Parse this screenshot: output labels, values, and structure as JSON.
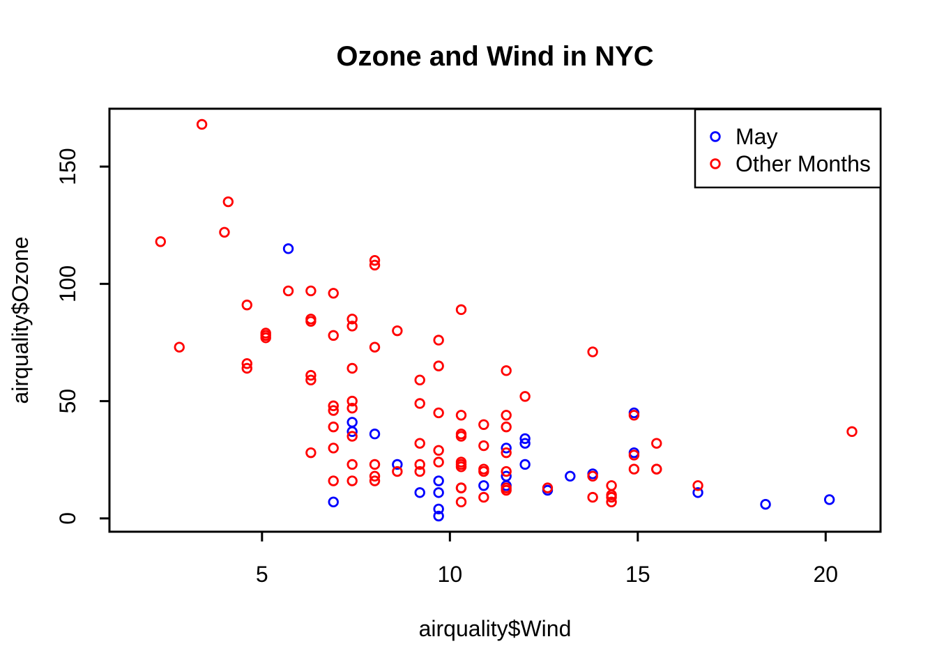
{
  "chart_data": {
    "type": "scatter",
    "title": "Ozone and Wind in NYC",
    "xlabel": "airquality$Wind",
    "ylabel": "airquality$Ozone",
    "xlim": [
      0.94,
      21.46
    ],
    "ylim": [
      -5.68,
      174.68
    ],
    "x_ticks": [
      5,
      10,
      15,
      20
    ],
    "y_ticks": [
      0,
      50,
      100,
      150
    ],
    "grid": false,
    "marker": "open-circle",
    "axis_color": "#000000",
    "background": "#ffffff",
    "legend": {
      "position": "top-right",
      "border": true
    },
    "series": [
      {
        "name": "May",
        "color": "#0000FF",
        "points": [
          [
            7.4,
            41
          ],
          [
            8,
            36
          ],
          [
            12.6,
            12
          ],
          [
            11.5,
            18
          ],
          [
            14.9,
            28
          ],
          [
            8.6,
            23
          ],
          [
            13.8,
            19
          ],
          [
            20.1,
            8
          ],
          [
            6.9,
            7
          ],
          [
            9.7,
            16
          ],
          [
            9.2,
            11
          ],
          [
            10.9,
            14
          ],
          [
            13.2,
            18
          ],
          [
            11.5,
            14
          ],
          [
            12,
            34
          ],
          [
            18.4,
            6
          ],
          [
            11.5,
            30
          ],
          [
            9.7,
            11
          ],
          [
            9.7,
            1
          ],
          [
            16.6,
            11
          ],
          [
            9.7,
            4
          ],
          [
            12,
            32
          ],
          [
            12,
            23
          ],
          [
            14.9,
            45
          ],
          [
            5.7,
            115
          ],
          [
            7.4,
            37
          ]
        ]
      },
      {
        "name": "Other Months",
        "color": "#FF0000",
        "points": [
          [
            9.7,
            29
          ],
          [
            13.8,
            71
          ],
          [
            11.5,
            39
          ],
          [
            8,
            23
          ],
          [
            14.9,
            21
          ],
          [
            20.7,
            37
          ],
          [
            9.2,
            20
          ],
          [
            11.5,
            12
          ],
          [
            10.3,
            13
          ],
          [
            4.1,
            135
          ],
          [
            9.2,
            49
          ],
          [
            9.2,
            32
          ],
          [
            4.6,
            64
          ],
          [
            10.9,
            40
          ],
          [
            5.1,
            77
          ],
          [
            6.3,
            97
          ],
          [
            5.7,
            97
          ],
          [
            7.4,
            85
          ],
          [
            14.3,
            10
          ],
          [
            14.9,
            27
          ],
          [
            14.3,
            7
          ],
          [
            6.9,
            48
          ],
          [
            10.3,
            35
          ],
          [
            6.3,
            61
          ],
          [
            5.1,
            79
          ],
          [
            11.5,
            63
          ],
          [
            6.9,
            16
          ],
          [
            8.6,
            80
          ],
          [
            8,
            108
          ],
          [
            8.6,
            20
          ],
          [
            12,
            52
          ],
          [
            7.4,
            82
          ],
          [
            7.4,
            50
          ],
          [
            7.4,
            64
          ],
          [
            9.2,
            59
          ],
          [
            6.9,
            39
          ],
          [
            13.8,
            9
          ],
          [
            7.4,
            16
          ],
          [
            6.9,
            78
          ],
          [
            7.4,
            35
          ],
          [
            4.6,
            66
          ],
          [
            4,
            122
          ],
          [
            10.3,
            89
          ],
          [
            8,
            110
          ],
          [
            11.5,
            44
          ],
          [
            11.5,
            28
          ],
          [
            9.7,
            65
          ],
          [
            10.3,
            22
          ],
          [
            6.3,
            59
          ],
          [
            7.4,
            23
          ],
          [
            10.9,
            31
          ],
          [
            10.3,
            44
          ],
          [
            15.5,
            21
          ],
          [
            14.3,
            9
          ],
          [
            9.7,
            45
          ],
          [
            3.4,
            168
          ],
          [
            8,
            73
          ],
          [
            9.7,
            76
          ],
          [
            2.3,
            118
          ],
          [
            6.3,
            84
          ],
          [
            6.3,
            85
          ],
          [
            6.9,
            96
          ],
          [
            5.1,
            78
          ],
          [
            2.8,
            73
          ],
          [
            4.6,
            91
          ],
          [
            7.4,
            47
          ],
          [
            15.5,
            32
          ],
          [
            10.9,
            20
          ],
          [
            10.3,
            23
          ],
          [
            10.9,
            21
          ],
          [
            9.7,
            24
          ],
          [
            14.9,
            44
          ],
          [
            15.5,
            21
          ],
          [
            6.3,
            28
          ],
          [
            10.9,
            9
          ],
          [
            11.5,
            13
          ],
          [
            6.9,
            46
          ],
          [
            13.8,
            18
          ],
          [
            10.3,
            13
          ],
          [
            10.3,
            24
          ],
          [
            8,
            16
          ],
          [
            12.6,
            13
          ],
          [
            9.2,
            23
          ],
          [
            10.3,
            36
          ],
          [
            10.3,
            7
          ],
          [
            16.6,
            14
          ],
          [
            6.9,
            30
          ],
          [
            14.3,
            14
          ],
          [
            8,
            18
          ],
          [
            11.5,
            20
          ]
        ]
      }
    ]
  }
}
